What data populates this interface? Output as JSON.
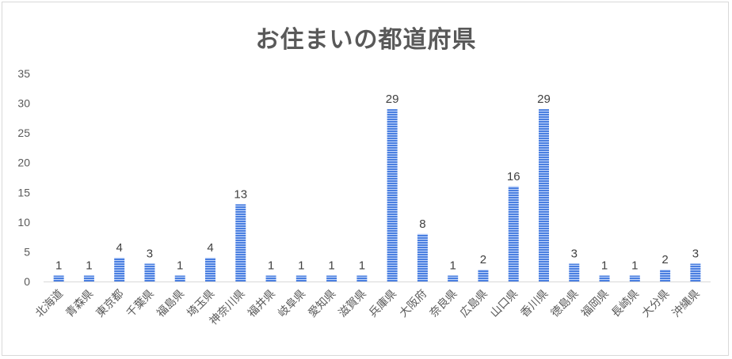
{
  "chart_data": {
    "type": "bar",
    "title": "お住まいの都道府県",
    "xlabel": "",
    "ylabel": "",
    "ylim": [
      0,
      35
    ],
    "yticks": [
      0,
      5,
      10,
      15,
      20,
      25,
      30,
      35
    ],
    "grid": false,
    "legend": "none",
    "bar_color": "#4a7fe0",
    "stripe_color": "#ffffff",
    "categories": [
      "北海道",
      "青森県",
      "東京都",
      "千葉県",
      "福島県",
      "埼玉県",
      "神奈川県",
      "福井県",
      "岐阜県",
      "愛知県",
      "滋賀県",
      "兵庫県",
      "大阪府",
      "奈良県",
      "広島県",
      "山口県",
      "香川県",
      "徳島県",
      "福岡県",
      "長崎県",
      "大分県",
      "沖縄県"
    ],
    "values": [
      1,
      1,
      4,
      3,
      1,
      4,
      13,
      1,
      1,
      1,
      1,
      29,
      8,
      1,
      2,
      16,
      29,
      3,
      1,
      1,
      2,
      3
    ]
  }
}
